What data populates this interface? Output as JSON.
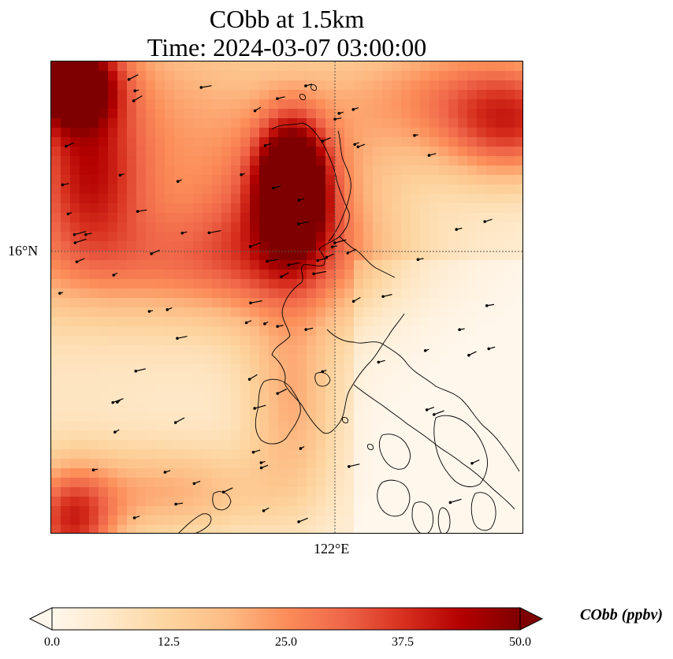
{
  "title": {
    "line1": "CObb at 1.5km",
    "line2": "Time: 2024-03-07 03:00:00"
  },
  "map": {
    "gridlines": {
      "latitude_label": "16°N",
      "longitude_label": "122°E"
    },
    "field": "CObb",
    "colormap": "OrRd",
    "colors": [
      "#fff7ec",
      "#fee8c8",
      "#fdd49e",
      "#fdbb84",
      "#fc8d59",
      "#ef6548",
      "#d7301f",
      "#b30000",
      "#7f0000"
    ]
  },
  "colorbar": {
    "label": "CObb (ppbv)",
    "ticks": [
      "0.0",
      "12.5",
      "25.0",
      "37.5",
      "50.0"
    ],
    "range": [
      0,
      50
    ],
    "extend": "both"
  }
}
